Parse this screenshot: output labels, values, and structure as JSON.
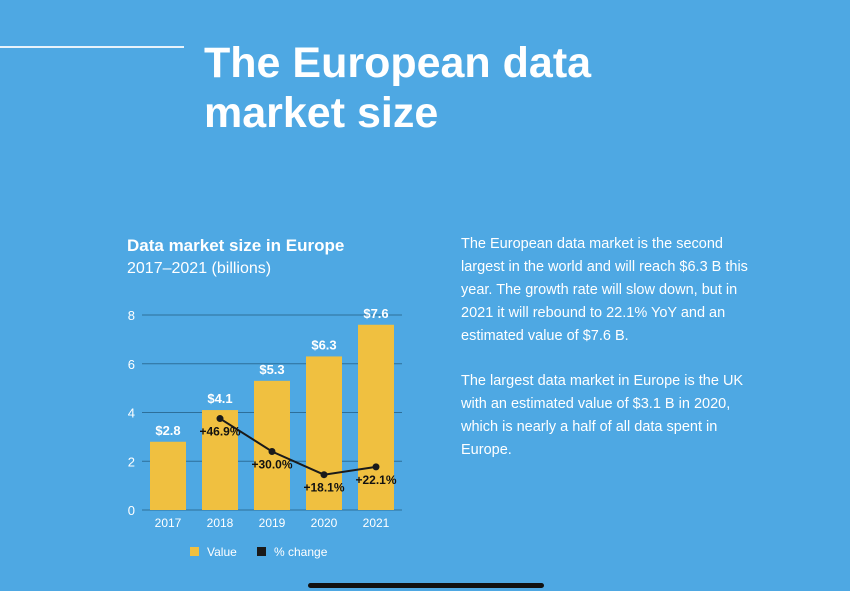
{
  "title_line1": "The European data",
  "title_line2": "market size",
  "chart_data": {
    "type": "bar",
    "title": "Data market size in Europe",
    "subtitle": "2017–2021 (billions)",
    "categories": [
      "2017",
      "2018",
      "2019",
      "2020",
      "2021"
    ],
    "series": [
      {
        "name": "Value",
        "type": "bar",
        "values": [
          2.8,
          4.1,
          5.3,
          6.3,
          7.6
        ],
        "labels": [
          "$2.8",
          "$4.1",
          "$5.3",
          "$6.3",
          "$7.6"
        ]
      },
      {
        "name": "% change",
        "type": "line",
        "values": [
          46.9,
          30.0,
          18.1,
          22.1
        ],
        "x": [
          "2018",
          "2019",
          "2020",
          "2021"
        ],
        "labels": [
          "+46.9%",
          "+30.0%",
          "+18.1%",
          "+22.1%"
        ]
      }
    ],
    "yticks": [
      0,
      2,
      4,
      6,
      8
    ],
    "ylim": [
      0,
      8
    ],
    "grid": true,
    "legend": "bottom",
    "colors": {
      "bar": "#f0c040",
      "line": "#1a1a1a"
    }
  },
  "description": {
    "paragraph1": "The European data market is the second largest in the world and will reach $6.3 B this year. The growth rate will slow down, but in 2021 it will rebound to 22.1% YoY and an estimated value of $7.6 B.",
    "paragraph2": "The largest data market in Europe is the UK with an estimated value of $3.1 B in 2020, which is nearly a half of all data spent in Europe."
  }
}
